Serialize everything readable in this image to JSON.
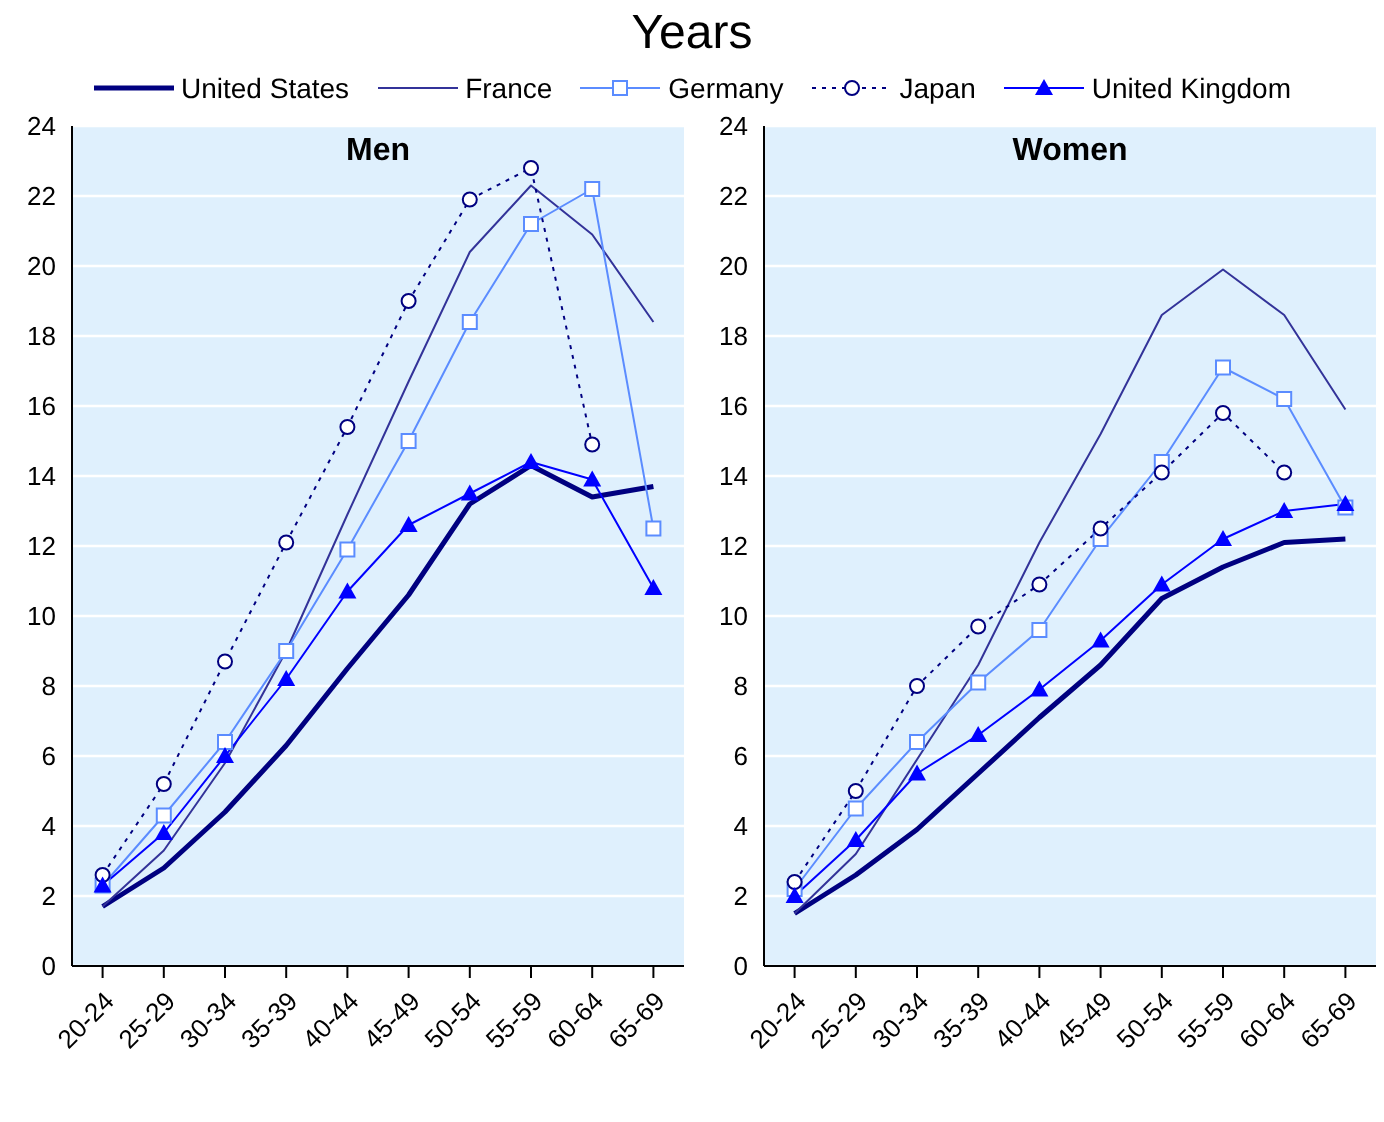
{
  "chart_data": [
    {
      "type": "line",
      "ylabel": "Years",
      "title": "Men",
      "categories": [
        "20-24",
        "25-29",
        "30-34",
        "35-39",
        "40-44",
        "45-49",
        "50-54",
        "55-59",
        "60-64",
        "65-69"
      ],
      "ylim": [
        0,
        24
      ],
      "yticks": [
        0,
        2,
        4,
        6,
        8,
        10,
        12,
        14,
        16,
        18,
        20,
        22,
        24
      ],
      "grid": "y",
      "legend": "top",
      "series": [
        {
          "name": "United States",
          "color": "#000080",
          "marker": "none",
          "line_style": "solid",
          "values": [
            1.7,
            2.8,
            4.4,
            6.3,
            8.5,
            10.6,
            13.2,
            14.3,
            13.4,
            13.7
          ]
        },
        {
          "name": "France",
          "color": "#333399",
          "marker": "none",
          "line_style": "solid",
          "values": [
            1.7,
            3.3,
            5.8,
            9.0,
            12.9,
            16.7,
            20.4,
            22.3,
            20.9,
            18.4
          ]
        },
        {
          "name": "Germany",
          "color": "#5b8cff",
          "marker": "square",
          "line_style": "solid",
          "values": [
            2.3,
            4.3,
            6.4,
            9.0,
            11.9,
            15.0,
            18.4,
            21.2,
            22.2,
            12.5
          ]
        },
        {
          "name": "Japan",
          "color": "#000080",
          "marker": "circle",
          "line_style": "dotted",
          "values": [
            2.6,
            5.2,
            8.7,
            12.1,
            15.4,
            19.0,
            21.9,
            22.8,
            14.9,
            null
          ]
        },
        {
          "name": "United Kingdom",
          "color": "#0000ff",
          "marker": "triangle",
          "line_style": "solid",
          "values": [
            2.3,
            3.8,
            6.0,
            8.2,
            10.7,
            12.6,
            13.5,
            14.4,
            13.9,
            10.8
          ]
        }
      ]
    },
    {
      "type": "line",
      "title": "Women",
      "categories": [
        "20-24",
        "25-29",
        "30-34",
        "35-39",
        "40-44",
        "45-49",
        "50-54",
        "55-59",
        "60-64",
        "65-69"
      ],
      "ylim": [
        0,
        24
      ],
      "yticks": [
        0,
        2,
        4,
        6,
        8,
        10,
        12,
        14,
        16,
        18,
        20,
        22,
        24
      ],
      "grid": "y",
      "series": [
        {
          "color": "#000080",
          "marker": "none",
          "line_style": "solid",
          "values": [
            1.5,
            2.6,
            3.9,
            5.5,
            7.1,
            8.6,
            10.5,
            11.4,
            12.1,
            12.2
          ]
        },
        {
          "color": "#333399",
          "marker": "none",
          "line_style": "solid",
          "values": [
            1.5,
            3.2,
            5.9,
            8.6,
            12.1,
            15.2,
            18.6,
            19.9,
            18.6,
            15.9
          ]
        },
        {
          "color": "#5b8cff",
          "marker": "square",
          "line_style": "solid",
          "values": [
            2.2,
            4.5,
            6.4,
            8.1,
            9.6,
            12.2,
            14.4,
            17.1,
            16.2,
            13.1
          ]
        },
        {
          "color": "#000080",
          "marker": "circle",
          "line_style": "dotted",
          "values": [
            2.4,
            5.0,
            8.0,
            9.7,
            10.9,
            12.5,
            14.1,
            15.8,
            14.1,
            null
          ]
        },
        {
          "color": "#0000ff",
          "marker": "triangle",
          "line_style": "solid",
          "values": [
            2.0,
            3.6,
            5.5,
            6.6,
            7.9,
            9.3,
            10.9,
            12.2,
            13.0,
            13.2
          ]
        }
      ]
    }
  ]
}
